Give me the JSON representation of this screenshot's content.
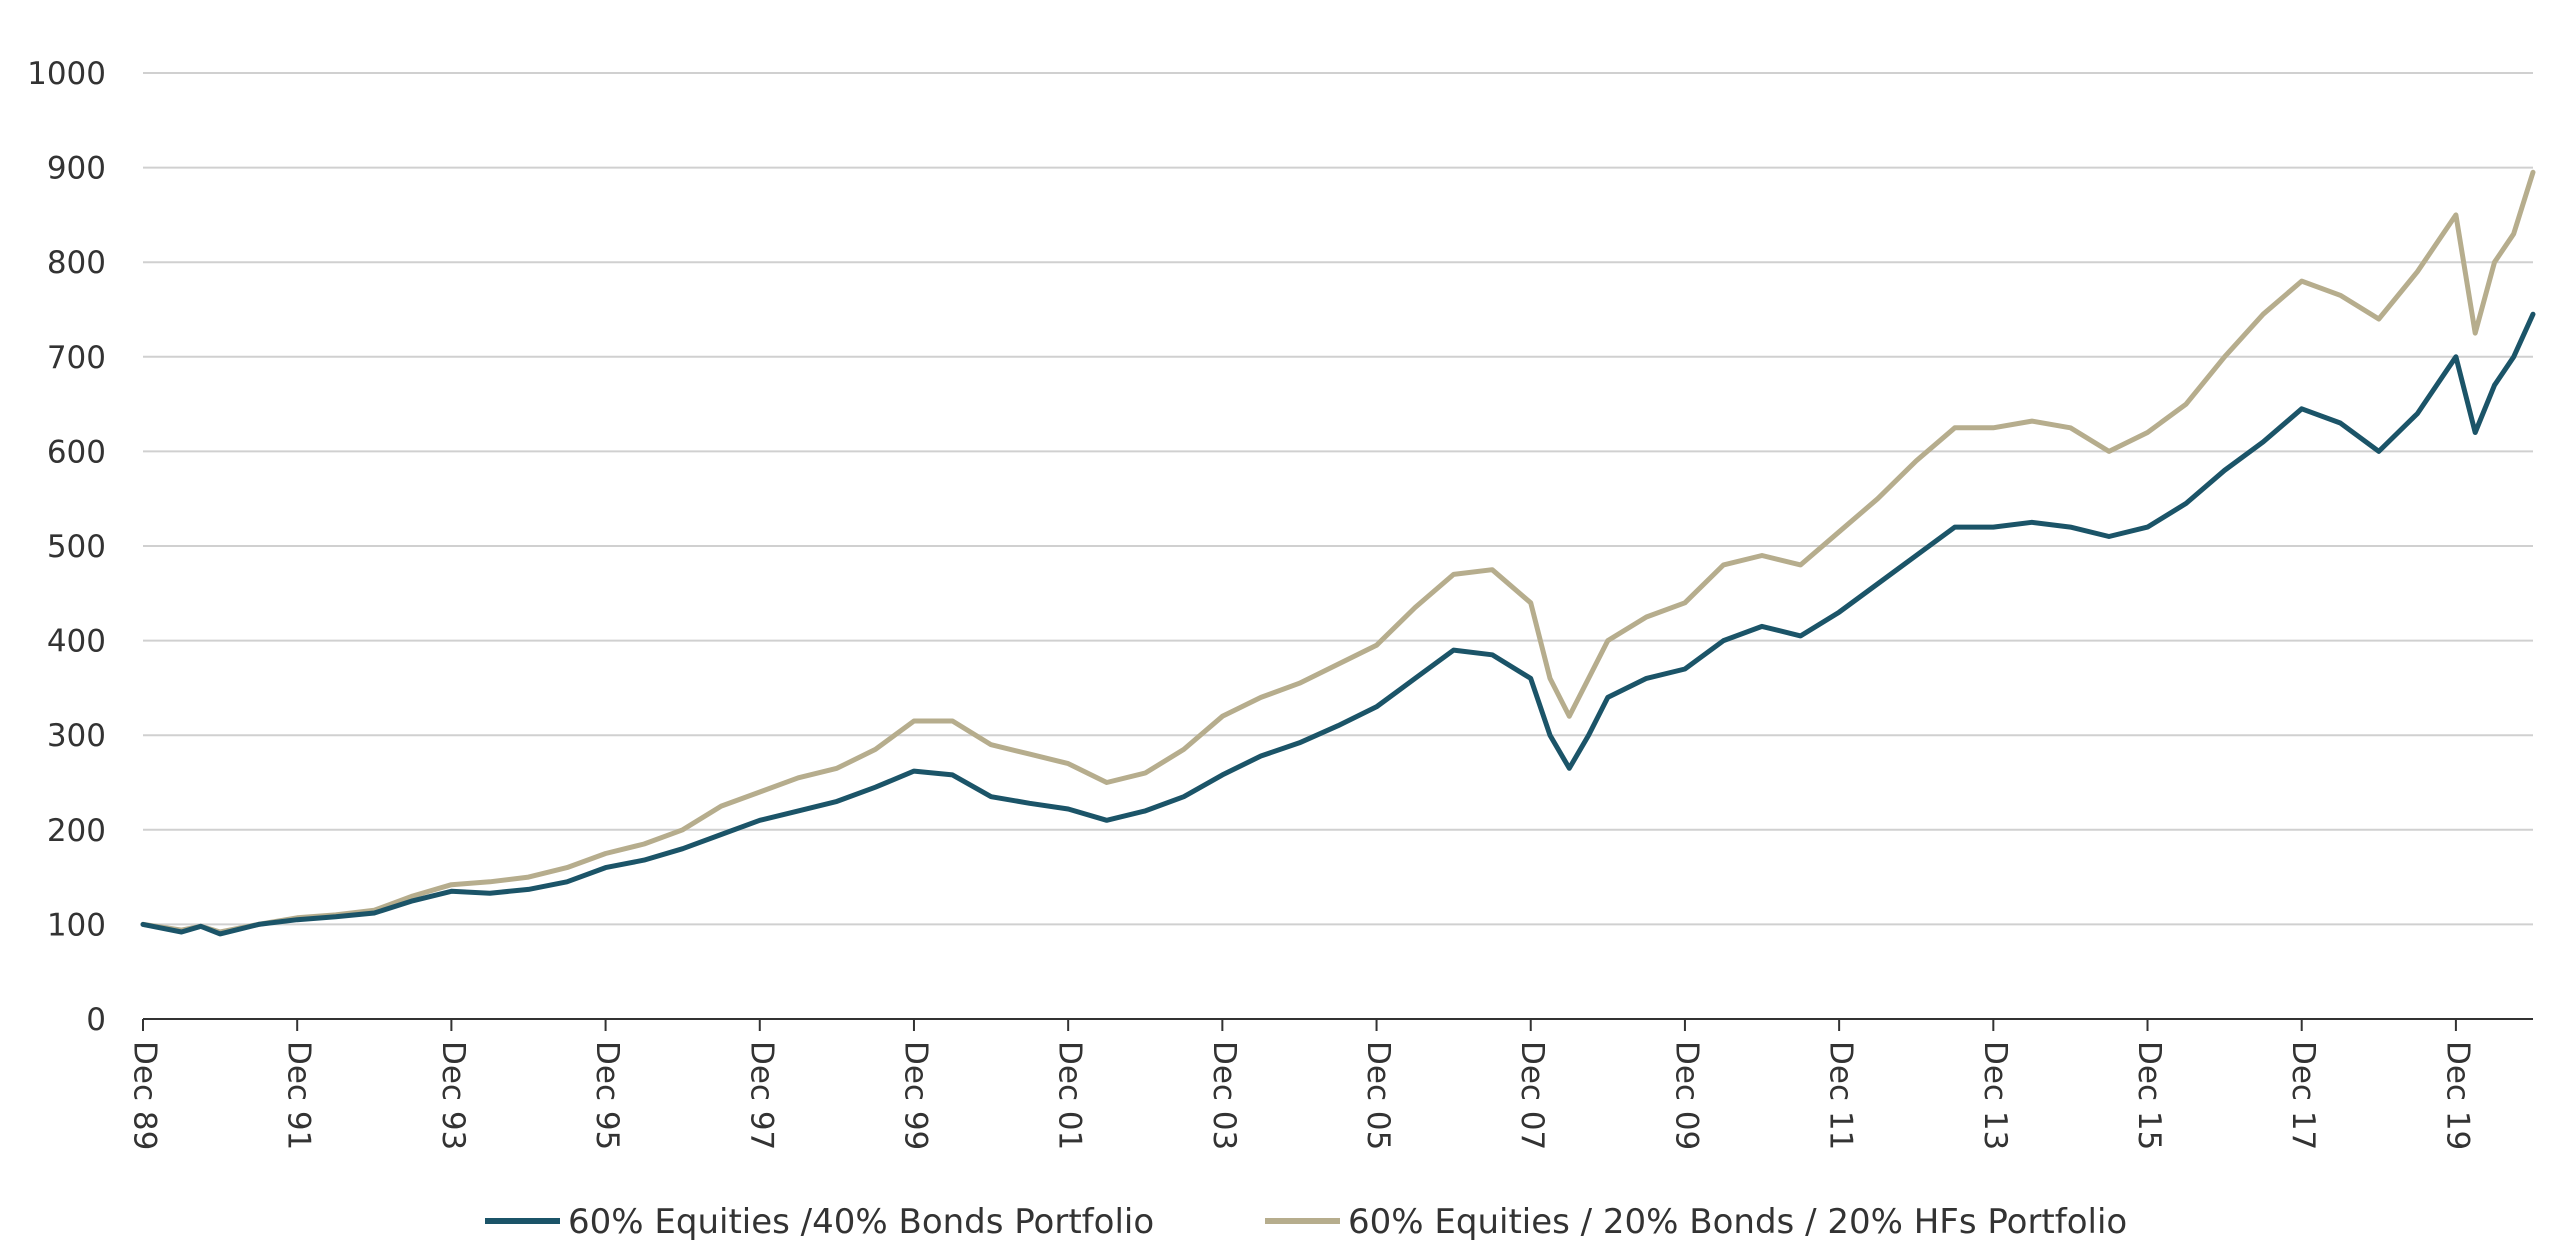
{
  "chart_data": {
    "type": "line",
    "title": "",
    "xlabel": "",
    "ylabel": "",
    "ylim": [
      0,
      1000
    ],
    "yticks": [
      0,
      100,
      200,
      300,
      400,
      500,
      600,
      700,
      800,
      900,
      1000
    ],
    "x_tick_labels": [
      "Dec 89",
      "Dec 91",
      "Dec 93",
      "Dec 95",
      "Dec 97",
      "Dec 99",
      "Dec 01",
      "Dec 03",
      "Dec 05",
      "Dec 07",
      "Dec 09",
      "Dec 11",
      "Dec 13",
      "Dec 15",
      "Dec 17",
      "Dec 19"
    ],
    "grid": "horizontal",
    "legend_position": "bottom",
    "x_unit": "years since Dec 1989",
    "series": [
      {
        "name": "60% Equities /40% Bonds Portfolio",
        "color": "#1b5468",
        "points": [
          [
            0,
            100
          ],
          [
            0.5,
            92
          ],
          [
            0.75,
            98
          ],
          [
            1.0,
            90
          ],
          [
            1.5,
            100
          ],
          [
            2.0,
            105
          ],
          [
            2.5,
            108
          ],
          [
            3.0,
            112
          ],
          [
            3.5,
            125
          ],
          [
            4.0,
            135
          ],
          [
            4.5,
            133
          ],
          [
            5.0,
            137
          ],
          [
            5.5,
            145
          ],
          [
            6.0,
            160
          ],
          [
            6.5,
            168
          ],
          [
            7.0,
            180
          ],
          [
            7.5,
            195
          ],
          [
            8.0,
            210
          ],
          [
            8.5,
            220
          ],
          [
            9.0,
            230
          ],
          [
            9.5,
            245
          ],
          [
            10.0,
            262
          ],
          [
            10.5,
            258
          ],
          [
            11.0,
            235
          ],
          [
            11.5,
            228
          ],
          [
            12.0,
            222
          ],
          [
            12.5,
            210
          ],
          [
            13.0,
            220
          ],
          [
            13.5,
            235
          ],
          [
            14.0,
            258
          ],
          [
            14.5,
            278
          ],
          [
            15.0,
            292
          ],
          [
            15.5,
            310
          ],
          [
            16.0,
            330
          ],
          [
            16.5,
            360
          ],
          [
            17.0,
            390
          ],
          [
            17.5,
            385
          ],
          [
            18.0,
            360
          ],
          [
            18.25,
            300
          ],
          [
            18.5,
            265
          ],
          [
            18.75,
            300
          ],
          [
            19.0,
            340
          ],
          [
            19.5,
            360
          ],
          [
            20.0,
            370
          ],
          [
            20.5,
            400
          ],
          [
            21.0,
            415
          ],
          [
            21.5,
            405
          ],
          [
            22.0,
            430
          ],
          [
            22.5,
            460
          ],
          [
            23.0,
            490
          ],
          [
            23.5,
            520
          ],
          [
            24.0,
            520
          ],
          [
            24.5,
            525
          ],
          [
            25.0,
            520
          ],
          [
            25.5,
            510
          ],
          [
            26.0,
            520
          ],
          [
            26.5,
            545
          ],
          [
            27.0,
            580
          ],
          [
            27.5,
            610
          ],
          [
            28.0,
            645
          ],
          [
            28.5,
            630
          ],
          [
            29.0,
            600
          ],
          [
            29.5,
            640
          ],
          [
            30.0,
            700
          ],
          [
            30.25,
            620
          ],
          [
            30.5,
            670
          ],
          [
            30.75,
            700
          ],
          [
            31.0,
            745
          ]
        ]
      },
      {
        "name": "60% Equities / 20% Bonds / 20% HFs Portfolio",
        "color": "#b6ad8d",
        "points": [
          [
            0,
            100
          ],
          [
            0.5,
            94
          ],
          [
            0.75,
            98
          ],
          [
            1.0,
            92
          ],
          [
            1.5,
            100
          ],
          [
            2.0,
            107
          ],
          [
            2.5,
            110
          ],
          [
            3.0,
            115
          ],
          [
            3.5,
            130
          ],
          [
            4.0,
            142
          ],
          [
            4.5,
            145
          ],
          [
            5.0,
            150
          ],
          [
            5.5,
            160
          ],
          [
            6.0,
            175
          ],
          [
            6.5,
            185
          ],
          [
            7.0,
            200
          ],
          [
            7.5,
            225
          ],
          [
            8.0,
            240
          ],
          [
            8.5,
            255
          ],
          [
            9.0,
            265
          ],
          [
            9.5,
            285
          ],
          [
            10.0,
            315
          ],
          [
            10.5,
            315
          ],
          [
            11.0,
            290
          ],
          [
            11.5,
            280
          ],
          [
            12.0,
            270
          ],
          [
            12.5,
            250
          ],
          [
            13.0,
            260
          ],
          [
            13.5,
            285
          ],
          [
            14.0,
            320
          ],
          [
            14.5,
            340
          ],
          [
            15.0,
            355
          ],
          [
            15.5,
            375
          ],
          [
            16.0,
            395
          ],
          [
            16.5,
            435
          ],
          [
            17.0,
            470
          ],
          [
            17.5,
            475
          ],
          [
            18.0,
            440
          ],
          [
            18.25,
            360
          ],
          [
            18.5,
            320
          ],
          [
            18.75,
            360
          ],
          [
            19.0,
            400
          ],
          [
            19.5,
            425
          ],
          [
            20.0,
            440
          ],
          [
            20.5,
            480
          ],
          [
            21.0,
            490
          ],
          [
            21.5,
            480
          ],
          [
            22.0,
            515
          ],
          [
            22.5,
            550
          ],
          [
            23.0,
            590
          ],
          [
            23.5,
            625
          ],
          [
            24.0,
            625
          ],
          [
            24.5,
            632
          ],
          [
            25.0,
            625
          ],
          [
            25.5,
            600
          ],
          [
            26.0,
            620
          ],
          [
            26.5,
            650
          ],
          [
            27.0,
            700
          ],
          [
            27.5,
            745
          ],
          [
            28.0,
            780
          ],
          [
            28.5,
            765
          ],
          [
            29.0,
            740
          ],
          [
            29.5,
            790
          ],
          [
            30.0,
            850
          ],
          [
            30.25,
            725
          ],
          [
            30.5,
            800
          ],
          [
            30.75,
            830
          ],
          [
            31.0,
            895
          ]
        ]
      }
    ]
  }
}
